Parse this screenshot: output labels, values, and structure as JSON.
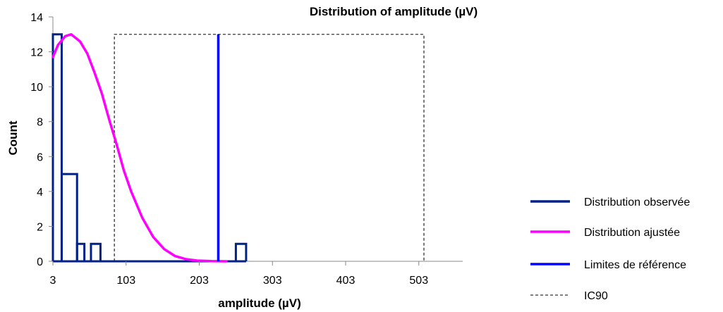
{
  "chart_data": {
    "type": "bar",
    "title": "Distribution of amplitude (µV)",
    "xlabel": "amplitude (µV)",
    "ylabel": "Count",
    "xlim": [
      3,
      563
    ],
    "ylim": [
      0,
      14
    ],
    "x_ticks": [
      3,
      103,
      203,
      303,
      403,
      503
    ],
    "y_ticks": [
      0,
      2,
      4,
      6,
      8,
      10,
      12,
      14
    ],
    "grid": false,
    "legend_position": "right",
    "series": [
      {
        "name": "Distribution observée",
        "kind": "step-histogram",
        "color": "#002288",
        "bins": [
          {
            "x0": 3,
            "x1": 15,
            "count": 13
          },
          {
            "x0": 15,
            "x1": 36,
            "count": 5
          },
          {
            "x0": 36,
            "x1": 46,
            "count": 1
          },
          {
            "x0": 46,
            "x1": 55,
            "count": 0
          },
          {
            "x0": 55,
            "x1": 68,
            "count": 1
          },
          {
            "x0": 68,
            "x1": 253,
            "count": 0
          },
          {
            "x0": 253,
            "x1": 267,
            "count": 1
          }
        ]
      },
      {
        "name": "Distribution ajustée",
        "kind": "line",
        "color": "#ff00ff",
        "x": [
          3,
          10,
          20,
          28,
          40,
          50,
          60,
          70,
          80,
          90,
          100,
          110,
          125,
          140,
          155,
          170,
          185,
          200,
          220,
          240
        ],
        "y": [
          11.7,
          12.4,
          12.9,
          13.0,
          12.6,
          11.9,
          10.8,
          9.6,
          8.1,
          6.7,
          5.2,
          4.0,
          2.5,
          1.4,
          0.7,
          0.3,
          0.12,
          0.04,
          0.01,
          0
        ]
      },
      {
        "name": "Limites de référence",
        "kind": "vline",
        "color": "#0000ff",
        "x": 229,
        "y_top": 13
      },
      {
        "name": "IC90",
        "kind": "dashed-box",
        "color": "#333333",
        "x0": 87,
        "x1": 510,
        "y_top": 13
      }
    ]
  }
}
